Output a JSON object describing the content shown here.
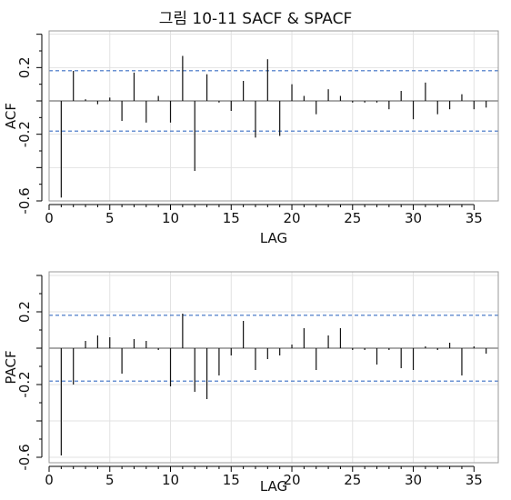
{
  "title": "그림 10-11 SACF & SPACF",
  "chart_data": [
    {
      "type": "bar",
      "panel": "acf",
      "ylabel": "ACF",
      "xlabel": "LAG",
      "xlim": [
        0,
        37
      ],
      "ylim": [
        -0.6,
        0.42
      ],
      "xticks": [
        0,
        5,
        10,
        15,
        20,
        25,
        30,
        35
      ],
      "xtick_labels": [
        "0",
        "5",
        "10",
        "15",
        "20",
        "25",
        "30",
        "35"
      ],
      "yticks": [
        -0.6,
        -0.2,
        0.2
      ],
      "ytick_labels": [
        "-0.6",
        "-0.2",
        "0.2"
      ],
      "conf_limit": 0.181,
      "grid": true,
      "x": [
        1,
        2,
        3,
        4,
        5,
        6,
        7,
        8,
        9,
        10,
        11,
        12,
        13,
        14,
        15,
        16,
        17,
        18,
        19,
        20,
        21,
        22,
        23,
        24,
        25,
        26,
        27,
        28,
        29,
        30,
        31,
        32,
        33,
        34,
        35,
        36
      ],
      "values": [
        -0.58,
        0.18,
        0.01,
        -0.02,
        0.02,
        -0.12,
        0.17,
        -0.13,
        0.03,
        -0.13,
        0.27,
        -0.42,
        0.16,
        -0.01,
        -0.06,
        0.12,
        -0.22,
        0.25,
        -0.21,
        0.1,
        0.03,
        -0.08,
        0.07,
        0.03,
        -0.01,
        -0.01,
        -0.01,
        -0.05,
        0.06,
        -0.11,
        0.11,
        -0.08,
        -0.05,
        0.04,
        -0.05,
        -0.04
      ]
    },
    {
      "type": "bar",
      "panel": "pacf",
      "ylabel": "PACF",
      "xlabel": "LAG",
      "xlim": [
        0,
        37
      ],
      "ylim": [
        -0.63,
        0.42
      ],
      "xticks": [
        0,
        5,
        10,
        15,
        20,
        25,
        30,
        35
      ],
      "xtick_labels": [
        "0",
        "5",
        "10",
        "15",
        "20",
        "25",
        "30",
        "35"
      ],
      "yticks": [
        -0.6,
        -0.2,
        0.2
      ],
      "ytick_labels": [
        "-0.6",
        "-0.2",
        "0.2"
      ],
      "conf_limit": 0.181,
      "grid": true,
      "x": [
        1,
        2,
        3,
        4,
        5,
        6,
        7,
        8,
        9,
        10,
        11,
        12,
        13,
        14,
        15,
        16,
        17,
        18,
        19,
        20,
        21,
        22,
        23,
        24,
        25,
        26,
        27,
        28,
        29,
        30,
        31,
        32,
        33,
        34,
        35,
        36
      ],
      "values": [
        -0.59,
        -0.2,
        0.04,
        0.07,
        0.06,
        -0.14,
        0.05,
        0.04,
        -0.01,
        -0.21,
        0.19,
        -0.24,
        -0.28,
        -0.15,
        -0.04,
        0.15,
        -0.12,
        -0.06,
        -0.04,
        0.02,
        0.11,
        -0.12,
        0.07,
        0.11,
        -0.01,
        -0.01,
        -0.09,
        -0.01,
        -0.11,
        -0.12,
        0.01,
        -0.01,
        0.03,
        -0.15,
        0.01,
        -0.03
      ]
    }
  ]
}
